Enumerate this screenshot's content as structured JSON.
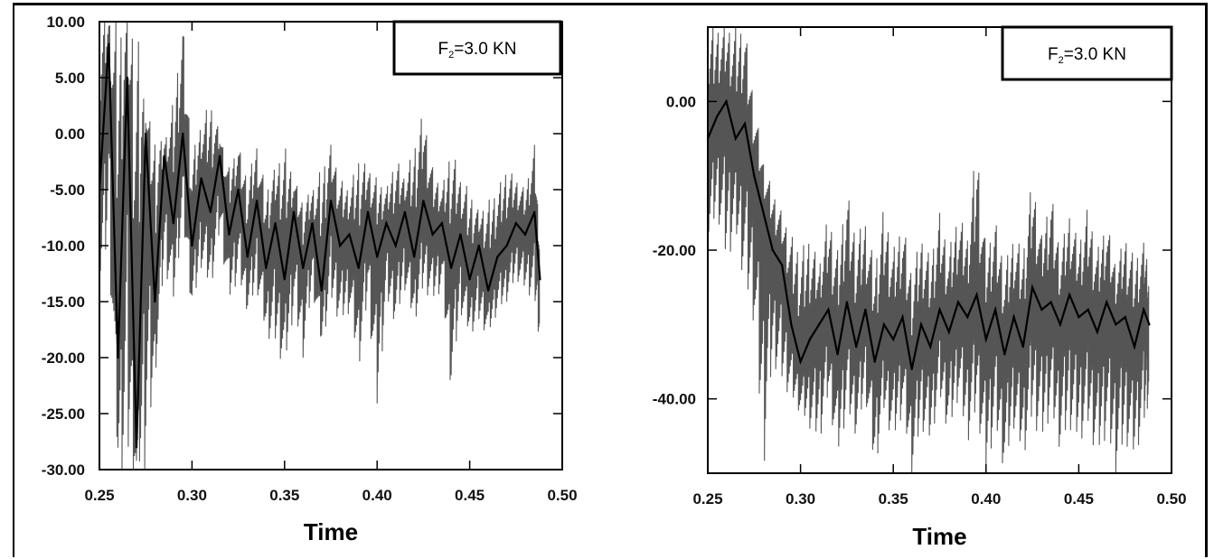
{
  "chart_data": [
    {
      "type": "line",
      "title": "",
      "xlabel": "Time",
      "ylabel": "",
      "xlim": [
        0.25,
        0.5
      ],
      "ylim": [
        -30.0,
        10.0
      ],
      "xticks": [
        "0.25",
        "0.30",
        "0.35",
        "0.40",
        "0.45",
        "0.50"
      ],
      "yticks": [
        "10.00",
        "5.00",
        "0.00",
        "-5.00",
        "-10.00",
        "-15.00",
        "-20.00",
        "-25.00",
        "-30.00"
      ],
      "grid": false,
      "legend": {
        "text_main": "F",
        "text_sub": "2",
        "text_rest": "=3.0 KN",
        "placement": "top-right"
      },
      "series": [
        {
          "color": "#000000",
          "x": [
            0.25,
            0.255,
            0.26,
            0.265,
            0.27,
            0.275,
            0.28,
            0.285,
            0.29,
            0.295,
            0.3,
            0.305,
            0.31,
            0.315,
            0.32,
            0.325,
            0.33,
            0.335,
            0.34,
            0.345,
            0.35,
            0.355,
            0.36,
            0.365,
            0.37,
            0.375,
            0.38,
            0.385,
            0.39,
            0.395,
            0.4,
            0.405,
            0.41,
            0.415,
            0.42,
            0.425,
            0.43,
            0.435,
            0.44,
            0.445,
            0.45,
            0.455,
            0.46,
            0.465,
            0.47,
            0.475,
            0.48,
            0.485,
            0.488
          ],
          "y": [
            -5,
            8,
            -20,
            5,
            -28,
            0,
            -15,
            -2,
            -8,
            0,
            -10,
            -4,
            -7,
            -2,
            -9,
            -5,
            -11,
            -6,
            -12,
            -8,
            -13,
            -7,
            -12,
            -8,
            -14,
            -6,
            -10,
            -9,
            -12,
            -7,
            -11,
            -8,
            -10,
            -7,
            -11,
            -6,
            -9,
            -8,
            -12,
            -9,
            -13,
            -10,
            -14,
            -11,
            -10,
            -8,
            -9,
            -7,
            -13
          ],
          "envelope_upper": [
            10,
            10,
            10,
            10,
            10,
            2,
            0,
            -1,
            3,
            10,
            -2,
            1,
            3,
            0,
            -3,
            -1,
            -4,
            -1,
            -5,
            -3,
            -1,
            -4,
            -6,
            -5,
            -3,
            -1,
            -4,
            -5,
            -2,
            -3,
            -4,
            -5,
            -2,
            -4,
            -1,
            2,
            -3,
            -5,
            -1,
            -4,
            -5,
            -7,
            -6,
            -5,
            -3,
            -4,
            -5,
            -1,
            -10
          ],
          "envelope_lower": [
            -14,
            -10,
            -30,
            -30,
            -30,
            -30,
            -22,
            -12,
            -15,
            -8,
            -16,
            -12,
            -14,
            -9,
            -15,
            -13,
            -16,
            -14,
            -18,
            -19,
            -21,
            -16,
            -20,
            -14,
            -19,
            -15,
            -17,
            -16,
            -21,
            -15,
            -25,
            -15,
            -17,
            -14,
            -17,
            -14,
            -15,
            -14,
            -23,
            -16,
            -18,
            -17,
            -18,
            -16,
            -15,
            -13,
            -14,
            -15,
            -19
          ]
        }
      ]
    },
    {
      "type": "line",
      "title": "",
      "xlabel": "Time",
      "ylabel": "",
      "xlim": [
        0.25,
        0.5
      ],
      "ylim": [
        -50.0,
        10.0
      ],
      "xticks": [
        "0.25",
        "0.30",
        "0.35",
        "0.40",
        "0.45",
        "0.50"
      ],
      "yticks": [
        "0.00",
        "-20.00",
        "-40.00"
      ],
      "grid": false,
      "legend": {
        "text_main": "F",
        "text_sub": "2",
        "text_rest": "=3.0 KN",
        "placement": "top-right"
      },
      "series": [
        {
          "color": "#000000",
          "x": [
            0.25,
            0.255,
            0.26,
            0.265,
            0.27,
            0.275,
            0.28,
            0.285,
            0.29,
            0.295,
            0.3,
            0.305,
            0.31,
            0.315,
            0.32,
            0.325,
            0.33,
            0.335,
            0.34,
            0.345,
            0.35,
            0.355,
            0.36,
            0.365,
            0.37,
            0.375,
            0.38,
            0.385,
            0.39,
            0.395,
            0.4,
            0.405,
            0.41,
            0.415,
            0.42,
            0.425,
            0.43,
            0.435,
            0.44,
            0.445,
            0.45,
            0.455,
            0.46,
            0.465,
            0.47,
            0.475,
            0.48,
            0.485,
            0.488
          ],
          "y": [
            -5,
            -2,
            0,
            -5,
            -3,
            -10,
            -15,
            -20,
            -22,
            -30,
            -35,
            -32,
            -30,
            -28,
            -34,
            -27,
            -33,
            -28,
            -35,
            -30,
            -32,
            -29,
            -36,
            -30,
            -33,
            -28,
            -31,
            -27,
            -29,
            -26,
            -32,
            -28,
            -34,
            -29,
            -33,
            -25,
            -28,
            -27,
            -30,
            -26,
            -29,
            -28,
            -31,
            -27,
            -30,
            -29,
            -33,
            -28,
            -30
          ],
          "envelope_upper": [
            10,
            10,
            10,
            10,
            10,
            0,
            -8,
            -12,
            -15,
            -18,
            -20,
            -18,
            -22,
            -15,
            -20,
            -12,
            -18,
            -16,
            -22,
            -14,
            -20,
            -16,
            -23,
            -18,
            -21,
            -15,
            -20,
            -15,
            -18,
            -5,
            -20,
            -16,
            -22,
            -18,
            -20,
            -10,
            -18,
            -12,
            -20,
            -15,
            -19,
            -14,
            -20,
            -16,
            -22,
            -18,
            -21,
            -19,
            -22
          ],
          "envelope_lower": [
            -20,
            -15,
            -22,
            -18,
            -25,
            -30,
            -50,
            -35,
            -38,
            -40,
            -42,
            -44,
            -46,
            -40,
            -48,
            -42,
            -45,
            -40,
            -50,
            -42,
            -46,
            -42,
            -50,
            -44,
            -46,
            -40,
            -45,
            -40,
            -46,
            -42,
            -50,
            -44,
            -50,
            -44,
            -48,
            -43,
            -46,
            -42,
            -47,
            -44,
            -46,
            -44,
            -48,
            -45,
            -50,
            -46,
            -48,
            -44,
            -40
          ]
        }
      ]
    }
  ]
}
